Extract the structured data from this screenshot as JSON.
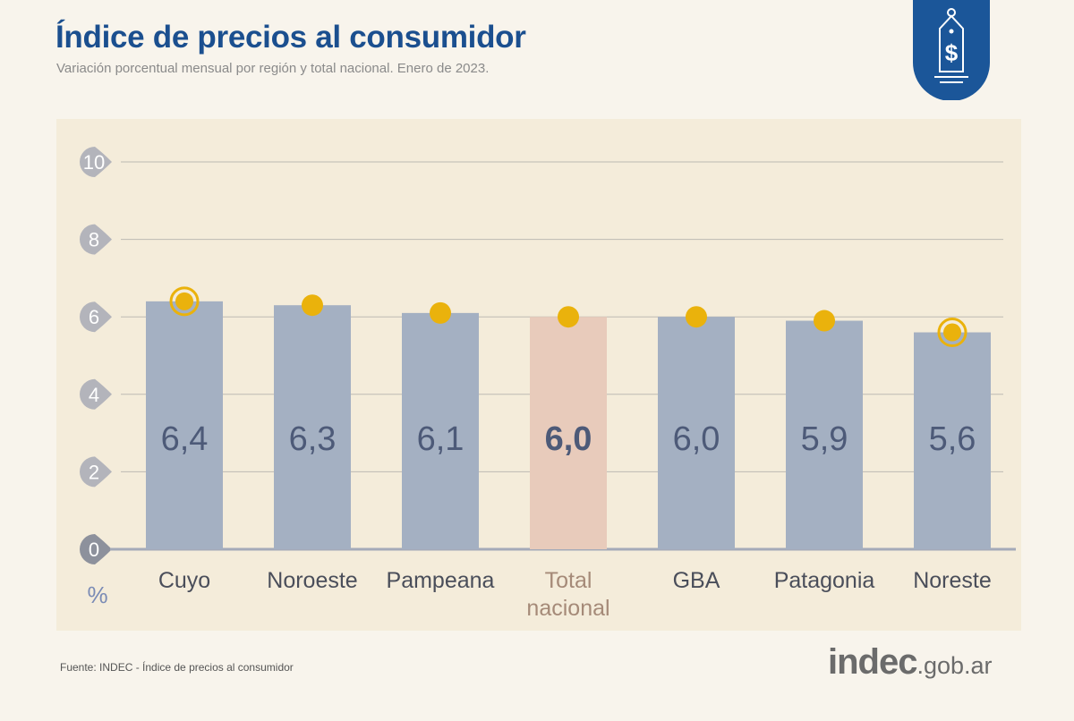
{
  "header": {
    "title": "Índice de precios al consumidor",
    "subtitle": "Variación porcentual mensual por región y total nacional. Enero de 2023."
  },
  "footer": {
    "source": "Fuente: INDEC - Índice de precios al consumidor",
    "logo_main": "indec",
    "logo_domain": ".gob.ar"
  },
  "badge_icon": "price-tag-dollar-icon",
  "colors": {
    "bar": "#a4b0c2",
    "highlight_bar": "#e8cbbb",
    "dot": "#eab20c",
    "title": "#1b4f8f",
    "value_text": "#4d5a78",
    "highlight_label": "#a58a78"
  },
  "chart_data": {
    "type": "bar",
    "categories": [
      "Cuyo",
      "Noroeste",
      "Pampeana",
      "Total nacional",
      "GBA",
      "Patagonia",
      "Noreste"
    ],
    "values": [
      6.4,
      6.3,
      6.1,
      6.0,
      6.0,
      5.9,
      5.6
    ],
    "value_labels": [
      "6,4",
      "6,3",
      "6,1",
      "6,0",
      "6,0",
      "5,9",
      "5,6"
    ],
    "highlight": "Total nacional",
    "ringed": [
      "Cuyo",
      "Noreste"
    ],
    "ylabel": "%",
    "ylim": [
      0,
      10
    ],
    "yticks": [
      0,
      2,
      4,
      6,
      8,
      10
    ],
    "grid": true
  }
}
